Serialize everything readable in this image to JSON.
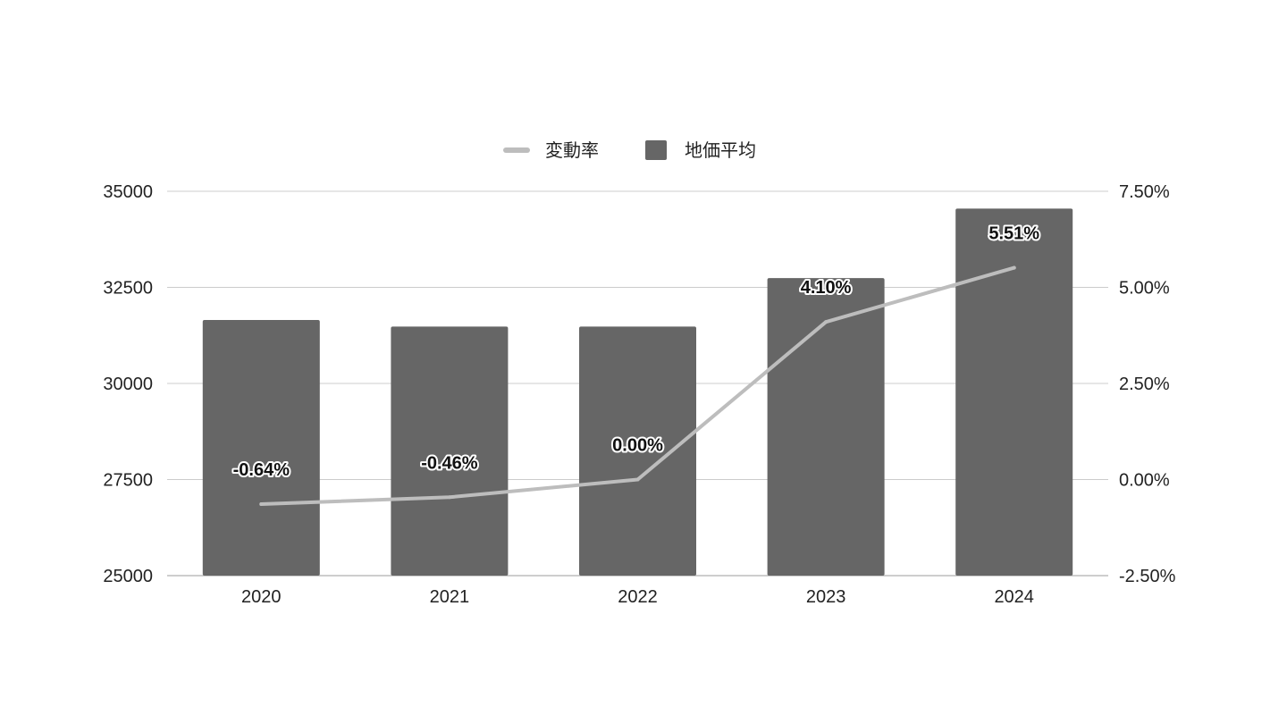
{
  "chart_data": {
    "type": "bar",
    "title": "",
    "categories": [
      "2020",
      "2021",
      "2022",
      "2023",
      "2024"
    ],
    "legend": {
      "placement": "top-center",
      "items": [
        {
          "name": "変動率",
          "symbol": "line"
        },
        {
          "name": "地価平均",
          "symbol": "square"
        }
      ]
    },
    "series": [
      {
        "name": "地価平均",
        "kind": "bar",
        "axis": "left",
        "color": "#666666",
        "values": [
          31650,
          31480,
          31480,
          32740,
          34550
        ]
      },
      {
        "name": "変動率",
        "kind": "line",
        "axis": "right",
        "color": "#bdbdbd",
        "values": [
          -0.64,
          -0.46,
          0.0,
          4.1,
          5.51
        ],
        "data_labels": [
          "-0.64%",
          "-0.46%",
          "0.00%",
          "4.10%",
          "5.51%"
        ]
      }
    ],
    "y_left": {
      "ylim": [
        25000,
        35000
      ],
      "ticks": [
        "25000",
        "27500",
        "30000",
        "32500",
        "35000"
      ]
    },
    "y_right": {
      "ylim": [
        -2.5,
        7.5
      ],
      "ticks": [
        "-2.50%",
        "0.00%",
        "2.50%",
        "5.00%",
        "7.50%"
      ]
    },
    "grid": true
  }
}
